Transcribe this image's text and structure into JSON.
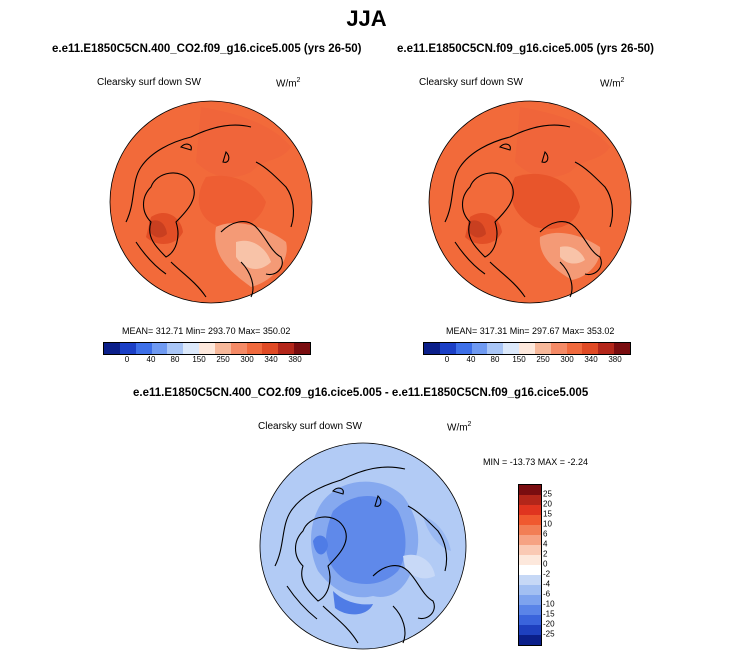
{
  "page": {
    "title": "JJA"
  },
  "panels": [
    {
      "case_title": "e.e11.E1850C5CN.400_CO2.f09_g16.cice5.005 (yrs 26-50)",
      "variable": "Clearsky surf down SW",
      "units": "W/m",
      "units_exp": "2",
      "stats": "MEAN= 312.71  Min= 293.70  Max= 350.02"
    },
    {
      "case_title": "e.e11.E1850C5CN.f09_g16.cice5.005 (yrs 26-50)",
      "variable": "Clearsky surf down SW",
      "units": "W/m",
      "units_exp": "2",
      "stats": "MEAN= 317.31  Min= 297.67  Max= 353.02"
    }
  ],
  "diff": {
    "title": "e.e11.E1850C5CN.400_CO2.f09_g16.cice5.005 - e.e11.E1850C5CN.f09_g16.cice5.005",
    "variable": "Clearsky surf down SW",
    "units": "W/m",
    "units_exp": "2",
    "stats": "MIN = -13.73 MAX =  -2.24"
  },
  "colorbar_abs": {
    "ticks": [
      "0",
      "40",
      "80",
      "150",
      "250",
      "300",
      "340",
      "380"
    ],
    "colors": [
      "#0b1f8a",
      "#1b3fc6",
      "#3d6fe8",
      "#6f9af2",
      "#a9c6f7",
      "#dce9fb",
      "#fde8dc",
      "#f7b89a",
      "#f48a66",
      "#f06a3e",
      "#e04a25",
      "#b3261a",
      "#7a0d10"
    ]
  },
  "colorbar_diff": {
    "ticks": [
      "25",
      "20",
      "15",
      "10",
      "6",
      "4",
      "2",
      "0",
      "-2",
      "-4",
      "-6",
      "-10",
      "-15",
      "-20",
      "-25"
    ],
    "colors": [
      "#7a0d10",
      "#b3261a",
      "#e0341f",
      "#f0592f",
      "#f27e55",
      "#f6a283",
      "#fac9b4",
      "#fde8dc",
      "#ffffff",
      "#c6d8f6",
      "#a2bff2",
      "#7ea3ee",
      "#5a84e8",
      "#3a64dc",
      "#1e40bf",
      "#0b1f8a"
    ]
  },
  "map_colors": {
    "abs_base": "#f26a3a",
    "abs_light": "#f49a76",
    "abs_lighter": "#f8c3a8",
    "abs_dark": "#e24e26",
    "diff_base": "#b2cbf5",
    "diff_mid": "#86a9ef",
    "diff_dark": "#4f7ce6"
  }
}
